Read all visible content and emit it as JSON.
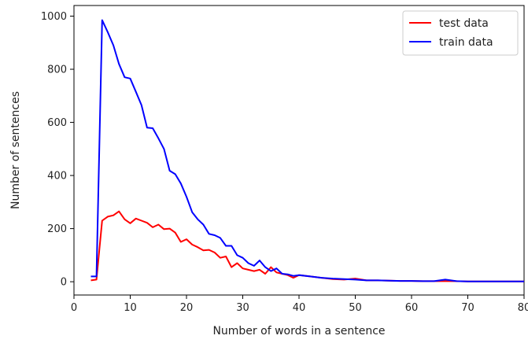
{
  "chart_data": {
    "type": "line",
    "title": "",
    "xlabel": "Number of words in a sentence",
    "ylabel": "Number of sentences",
    "xlim": [
      0,
      80
    ],
    "ylim": [
      -50,
      1040
    ],
    "xticks": [
      0,
      10,
      20,
      30,
      40,
      50,
      60,
      70,
      80
    ],
    "yticks": [
      0,
      200,
      400,
      600,
      800,
      1000
    ],
    "grid": false,
    "legend_position": "top-right",
    "series": [
      {
        "name": "test data",
        "color": "#ff0000",
        "x": [
          3,
          4,
          5,
          6,
          7,
          8,
          9,
          10,
          11,
          12,
          13,
          14,
          15,
          16,
          17,
          18,
          19,
          20,
          21,
          22,
          23,
          24,
          25,
          26,
          27,
          28,
          29,
          30,
          31,
          32,
          33,
          34,
          35,
          36,
          37,
          38,
          39,
          40,
          42,
          44,
          46,
          48,
          50,
          52,
          54,
          56,
          58,
          60,
          62,
          64,
          66,
          68,
          70,
          72,
          74,
          76,
          78,
          80
        ],
        "y": [
          5,
          8,
          230,
          245,
          250,
          265,
          235,
          220,
          238,
          230,
          222,
          205,
          215,
          198,
          200,
          185,
          150,
          160,
          140,
          130,
          118,
          120,
          110,
          90,
          95,
          55,
          70,
          50,
          45,
          40,
          45,
          30,
          55,
          35,
          30,
          25,
          15,
          25,
          20,
          15,
          10,
          8,
          12,
          5,
          5,
          4,
          3,
          3,
          2,
          2,
          2,
          2,
          1,
          1,
          1,
          1,
          1,
          1
        ]
      },
      {
        "name": "train data",
        "color": "#0000ff",
        "x": [
          3,
          4,
          5,
          6,
          7,
          8,
          9,
          10,
          11,
          12,
          13,
          14,
          15,
          16,
          17,
          18,
          19,
          20,
          21,
          22,
          23,
          24,
          25,
          26,
          27,
          28,
          29,
          30,
          31,
          32,
          33,
          34,
          35,
          36,
          37,
          38,
          39,
          40,
          42,
          44,
          46,
          48,
          50,
          52,
          54,
          56,
          58,
          60,
          62,
          64,
          66,
          68,
          70,
          72,
          74,
          76,
          78,
          80
        ],
        "y": [
          20,
          20,
          985,
          940,
          890,
          820,
          770,
          765,
          715,
          665,
          580,
          578,
          540,
          500,
          418,
          405,
          370,
          320,
          262,
          235,
          215,
          180,
          175,
          165,
          135,
          135,
          100,
          90,
          70,
          60,
          80,
          55,
          40,
          50,
          30,
          28,
          22,
          25,
          20,
          15,
          12,
          10,
          8,
          5,
          5,
          4,
          3,
          3,
          2,
          2,
          8,
          2,
          1,
          1,
          1,
          1,
          1,
          1
        ]
      }
    ]
  }
}
